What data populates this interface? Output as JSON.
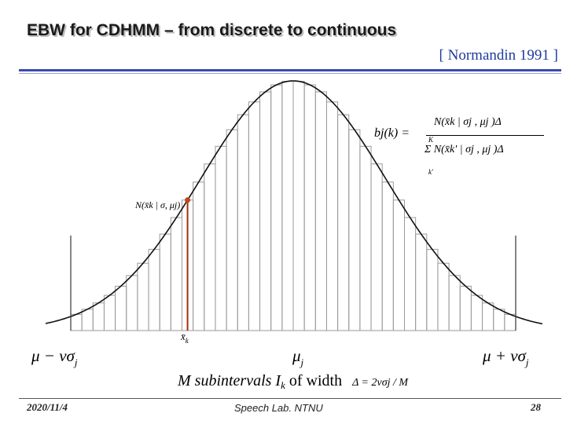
{
  "slide": {
    "title": "EBW for CDHMM – from discrete to continuous",
    "citation": "[ Normandin 1991 ]",
    "footer_date": "2020/11/4",
    "footer_lab": "Speech Lab. NTNU",
    "page_number": "28"
  },
  "diagram": {
    "axis_left_label": "μ − νσ",
    "axis_left_sub": "j",
    "axis_center_label": "μ",
    "axis_center_sub": "j",
    "axis_right_label": "μ + νσ",
    "axis_right_sub": "j",
    "sample_point_label": "x̄",
    "sample_point_sub": "k",
    "point_annotation": "N(x̄k | σ, μj)",
    "caption_prefix": "M subintervals I",
    "caption_sub": "k",
    "caption_suffix": " of width",
    "width_formula": "Δ = 2νσj / M",
    "bj_lhs": "bj(k) =",
    "bj_numerator": "N(x̄k | σj , μj )Δ",
    "bj_denominator": "Σ N(x̄k' | σj , μj )Δ",
    "bj_sum_upper": "K",
    "bj_sum_lower": "k'",
    "subinterval_count": 40
  }
}
